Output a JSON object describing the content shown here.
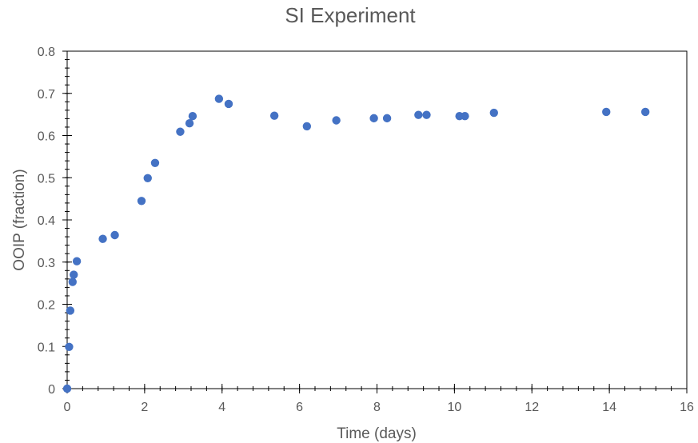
{
  "chart_data": {
    "type": "scatter",
    "title": "SI Experiment",
    "xlabel": "Time (days)",
    "ylabel": "OOIP (fraction)",
    "xlim": [
      0,
      16
    ],
    "ylim": [
      0,
      0.8
    ],
    "x_ticks": [
      0,
      2,
      4,
      6,
      8,
      10,
      12,
      14,
      16
    ],
    "y_ticks": [
      0,
      0.1,
      0.2,
      0.3,
      0.4,
      0.5,
      0.6,
      0.7,
      0.8
    ],
    "x_tick_labels": [
      "0",
      "2",
      "4",
      "6",
      "8",
      "10",
      "12",
      "14",
      "16"
    ],
    "y_tick_labels": [
      "0",
      "0.1",
      "0.2",
      "0.3",
      "0.4",
      "0.5",
      "0.6",
      "0.7",
      "0.8"
    ],
    "x_minor_step": 0.4,
    "y_minor_step": 0.02,
    "grid": false,
    "legend": "none",
    "marker_color": "#4472C4",
    "series": [
      {
        "x": [
          0.0,
          0.05,
          0.08,
          0.14,
          0.17,
          0.25,
          0.92,
          1.23,
          1.92,
          2.08,
          2.27,
          2.92,
          3.16,
          3.24,
          3.92,
          4.17,
          5.35,
          6.19,
          6.95,
          7.92,
          8.26,
          9.07,
          9.28,
          10.13,
          10.27,
          11.02,
          13.92,
          14.93
        ],
        "y": [
          0.0,
          0.099,
          0.185,
          0.253,
          0.27,
          0.302,
          0.355,
          0.364,
          0.445,
          0.499,
          0.535,
          0.609,
          0.629,
          0.646,
          0.687,
          0.675,
          0.647,
          0.622,
          0.636,
          0.641,
          0.641,
          0.649,
          0.649,
          0.646,
          0.646,
          0.654,
          0.656,
          0.656
        ]
      }
    ]
  }
}
